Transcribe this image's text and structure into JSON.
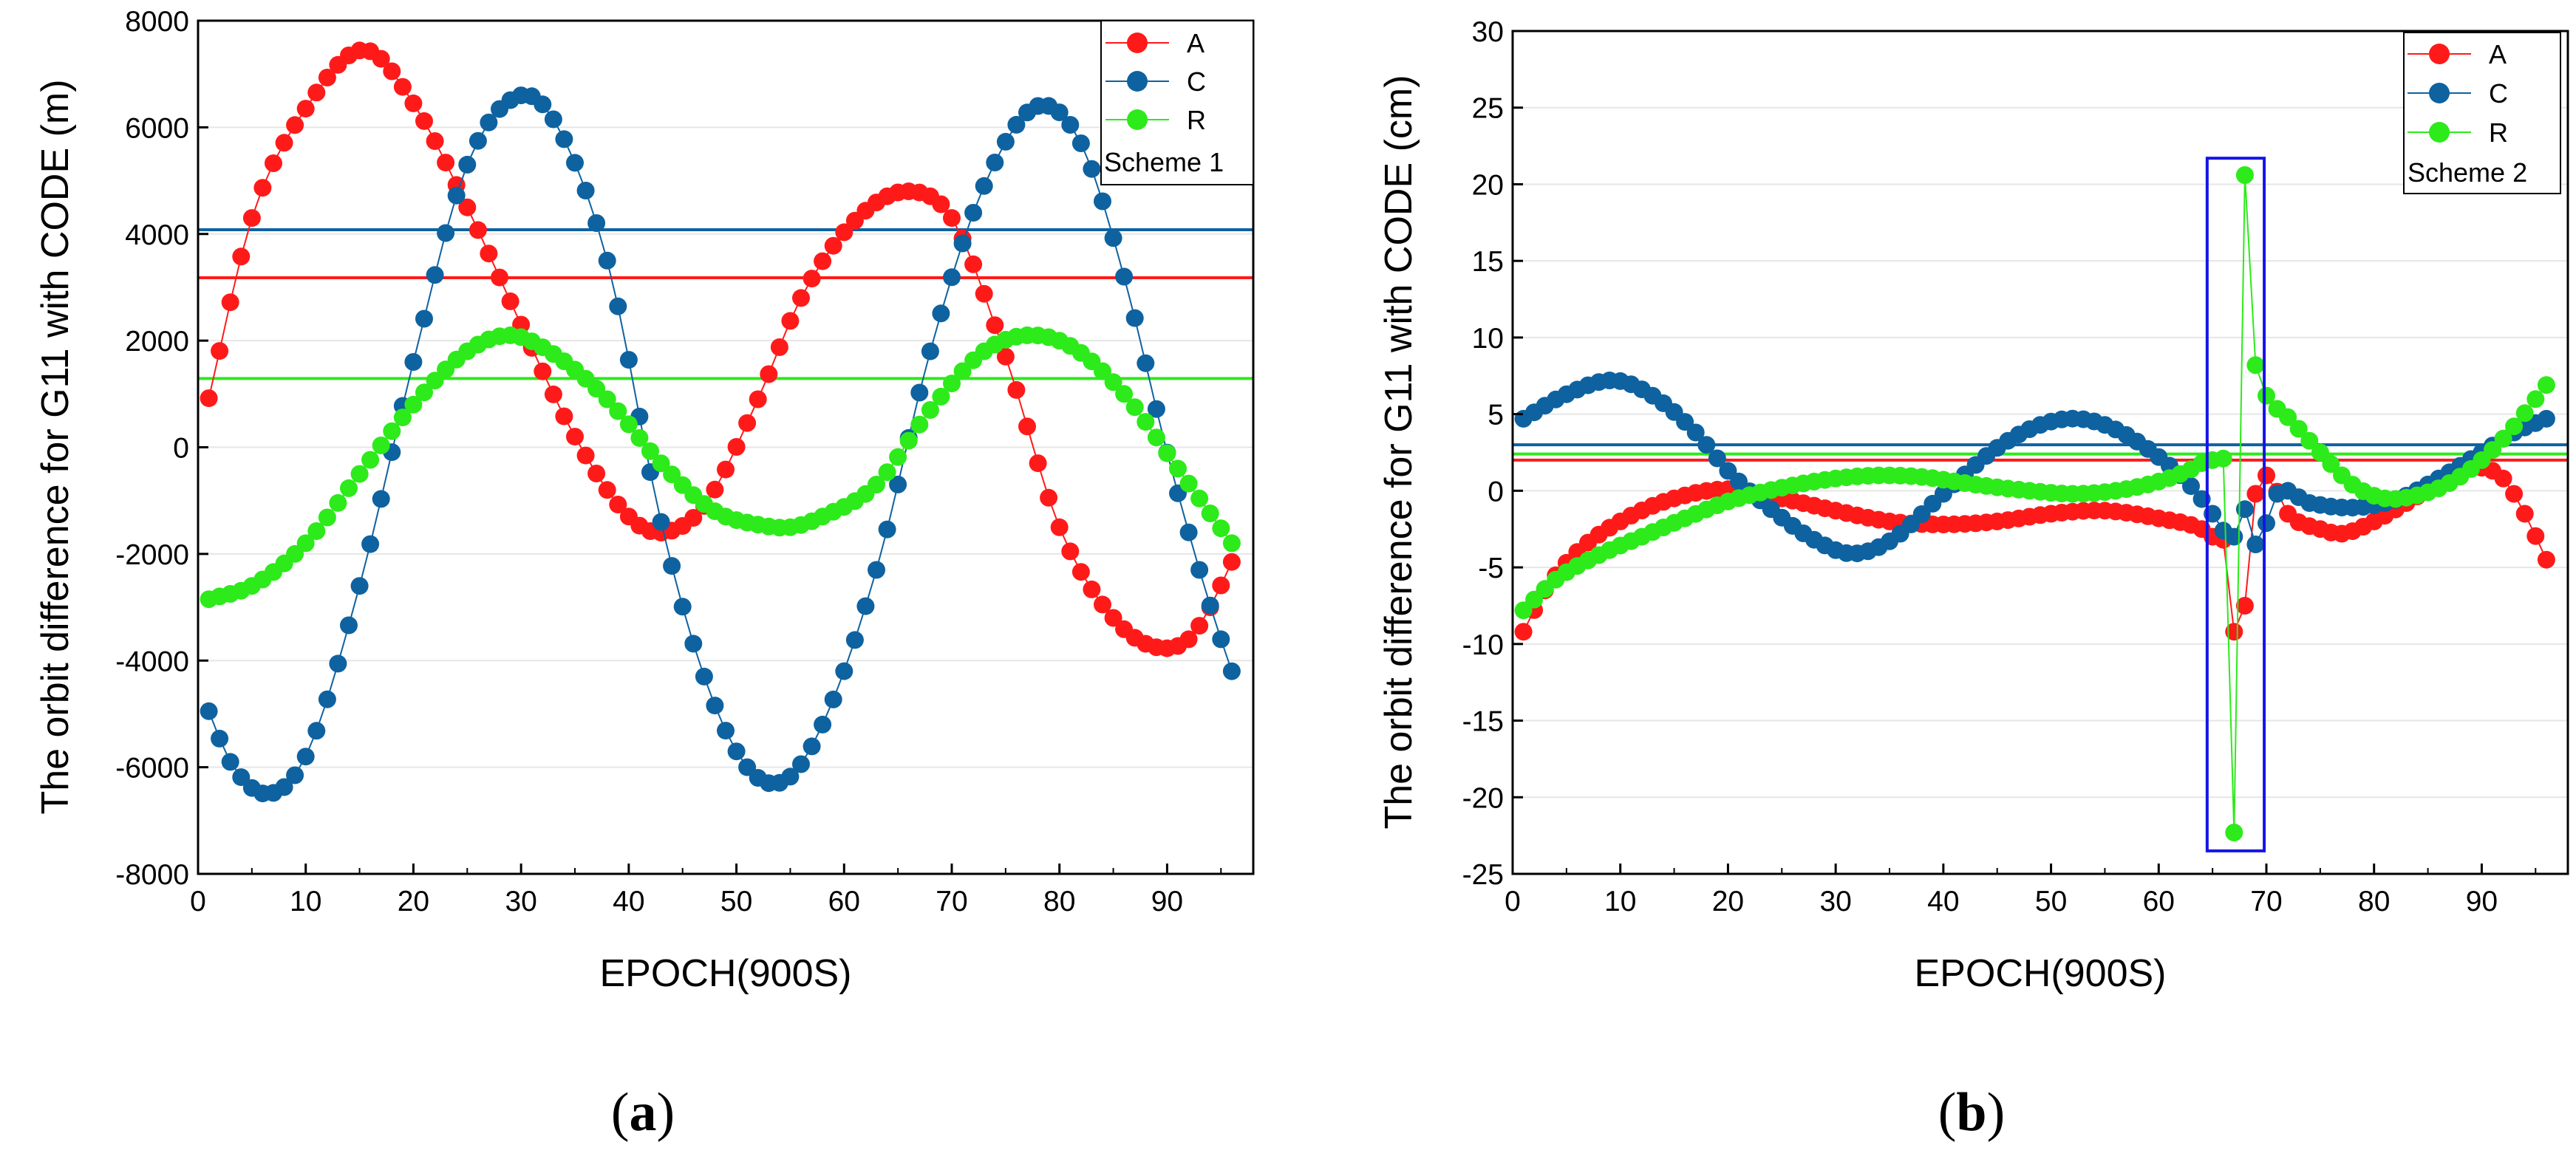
{
  "chart_data": [
    {
      "type": "scatter",
      "panel": "(a)",
      "caption": {
        "open": "(",
        "letter": "a",
        "close": ")"
      },
      "xlabel": "EPOCH(900S)",
      "ylabel": "The orbit difference for G11 with CODE (m)",
      "xlim": [
        0,
        98
      ],
      "ylim": [
        -8000,
        8000
      ],
      "xticks": [
        0,
        10,
        20,
        30,
        40,
        50,
        60,
        70,
        80,
        90
      ],
      "yticks": [
        -8000,
        -6000,
        -4000,
        -2000,
        0,
        2000,
        4000,
        6000,
        8000
      ],
      "grid": true,
      "legend": {
        "placement": "top-right",
        "note": "Scheme 1"
      },
      "x": {
        "start": 1,
        "end": 96,
        "step": 1
      },
      "series": [
        {
          "name": "A",
          "color": "#ff1a1a",
          "mean": 3180,
          "key": [
            [
              1,
              920
            ],
            [
              5,
              4300
            ],
            [
              10,
              6350
            ],
            [
              15.5,
              7450
            ],
            [
              20,
              6450
            ],
            [
              25,
              4500
            ],
            [
              30,
              2300
            ],
            [
              35,
              200
            ],
            [
              40,
              -1300
            ],
            [
              43,
              -1600
            ],
            [
              47,
              -1100
            ],
            [
              52,
              900
            ],
            [
              56,
              2800
            ],
            [
              61,
              4250
            ],
            [
              66,
              4800
            ],
            [
              70,
              4300
            ],
            [
              75,
              1700
            ],
            [
              80,
              -1500
            ],
            [
              85,
              -3200
            ],
            [
              89,
              -3750
            ],
            [
              92,
              -3600
            ],
            [
              94,
              -3000
            ],
            [
              96,
              -2150
            ]
          ]
        },
        {
          "name": "C",
          "color": "#0e62a0",
          "mean": 4080,
          "key": [
            [
              1,
              -4950
            ],
            [
              3,
              -5900
            ],
            [
              6.5,
              -6500
            ],
            [
              10,
              -5800
            ],
            [
              15,
              -2600
            ],
            [
              20,
              1600
            ],
            [
              25,
              5300
            ],
            [
              30,
              6600
            ],
            [
              33,
              6150
            ],
            [
              38,
              3500
            ],
            [
              43,
              -1400
            ],
            [
              47,
              -4300
            ],
            [
              51,
              -6000
            ],
            [
              54.5,
              -6250
            ],
            [
              58,
              -5200
            ],
            [
              63,
              -2300
            ],
            [
              68,
              1800
            ],
            [
              73,
              4900
            ],
            [
              78,
              6400
            ],
            [
              82,
              5700
            ],
            [
              86,
              3200
            ],
            [
              90,
              -100
            ],
            [
              93,
              -2300
            ],
            [
              95,
              -3600
            ],
            [
              96,
              -4200
            ]
          ]
        },
        {
          "name": "R",
          "color": "#2dea1a",
          "mean": 1290,
          "key": [
            [
              1,
              -2850
            ],
            [
              5,
              -2600
            ],
            [
              10,
              -1800
            ],
            [
              15,
              -500
            ],
            [
              20,
              800
            ],
            [
              25,
              1800
            ],
            [
              29,
              2100
            ],
            [
              33,
              1750
            ],
            [
              38,
              900
            ],
            [
              43,
              -300
            ],
            [
              48,
              -1200
            ],
            [
              52,
              -1450
            ],
            [
              55,
              -1500
            ],
            [
              58,
              -1300
            ],
            [
              63,
              -700
            ],
            [
              68,
              700
            ],
            [
              73,
              1800
            ],
            [
              77,
              2100
            ],
            [
              81,
              1900
            ],
            [
              86,
              1000
            ],
            [
              91,
              -400
            ],
            [
              96,
              -1800
            ]
          ]
        }
      ]
    },
    {
      "type": "scatter",
      "panel": "(b)",
      "caption": {
        "open": "(",
        "letter": "b",
        "close": ")"
      },
      "xlabel": "EPOCH(900S)",
      "ylabel": "The orbit difference for G11 with CODE (cm)",
      "xlim": [
        0,
        98
      ],
      "ylim": [
        -25,
        30
      ],
      "xticks": [
        0,
        10,
        20,
        30,
        40,
        50,
        60,
        70,
        80,
        90
      ],
      "yticks": [
        -25,
        -20,
        -15,
        -10,
        -5,
        0,
        5,
        10,
        15,
        20,
        25,
        30
      ],
      "grid": true,
      "legend": {
        "placement": "top-right",
        "note": "Scheme 2"
      },
      "highlight_box": {
        "x_range": [
          64.5,
          69.8
        ],
        "y_range": [
          -23.5,
          21.7
        ],
        "color": "#1414e6"
      },
      "x": {
        "start": 1,
        "end": 96,
        "step": 1
      },
      "series": [
        {
          "name": "A",
          "color": "#ff1a1a",
          "mean": 2.0,
          "key": [
            [
              1,
              -9.2
            ],
            [
              3,
              -6.5
            ],
            [
              6,
              -4.0
            ],
            [
              10,
              -2.0
            ],
            [
              15,
              -0.5
            ],
            [
              20,
              0.1
            ],
            [
              25,
              -0.5
            ],
            [
              30,
              -1.3
            ],
            [
              35,
              -2.0
            ],
            [
              40,
              -2.2
            ],
            [
              45,
              -2.0
            ],
            [
              50,
              -1.5
            ],
            [
              55,
              -1.3
            ],
            [
              60,
              -1.8
            ],
            [
              64,
              -2.5
            ],
            [
              65,
              -3.0
            ],
            [
              66,
              -3.2
            ],
            [
              67,
              -9.2
            ],
            [
              68,
              -7.5
            ],
            [
              69,
              -0.2
            ],
            [
              70,
              1.0
            ],
            [
              72,
              -1.5
            ],
            [
              75,
              -2.5
            ],
            [
              77,
              -2.8
            ],
            [
              80,
              -2.0
            ],
            [
              83,
              -0.8
            ],
            [
              86,
              0.5
            ],
            [
              88,
              1.3
            ],
            [
              90,
              1.5
            ],
            [
              92,
              0.8
            ],
            [
              94,
              -1.5
            ],
            [
              96,
              -4.5
            ]
          ]
        },
        {
          "name": "C",
          "color": "#0e62a0",
          "mean": 3.0,
          "key": [
            [
              1,
              4.7
            ],
            [
              5,
              6.3
            ],
            [
              9.5,
              7.2
            ],
            [
              13,
              6.2
            ],
            [
              17,
              3.8
            ],
            [
              20,
              1.3
            ],
            [
              24,
              -1.2
            ],
            [
              28,
              -3.2
            ],
            [
              31.5,
              -4.1
            ],
            [
              35,
              -3.3
            ],
            [
              40,
              -0.2
            ],
            [
              45,
              2.8
            ],
            [
              49,
              4.3
            ],
            [
              52.5,
              4.7
            ],
            [
              56,
              4.0
            ],
            [
              60,
              2.2
            ],
            [
              63,
              0.3
            ],
            [
              65,
              -1.5
            ],
            [
              66,
              -2.6
            ],
            [
              67,
              -3.0
            ],
            [
              68,
              -1.2
            ],
            [
              69,
              -3.5
            ],
            [
              71,
              -0.2
            ],
            [
              74,
              -0.8
            ],
            [
              78,
              -1.1
            ],
            [
              82,
              -0.6
            ],
            [
              86,
              0.8
            ],
            [
              90,
              2.5
            ],
            [
              93,
              3.8
            ],
            [
              96,
              4.7
            ]
          ]
        },
        {
          "name": "R",
          "color": "#2dea1a",
          "mean": 2.4,
          "key": [
            [
              1,
              -7.8
            ],
            [
              4,
              -5.8
            ],
            [
              8,
              -4.2
            ],
            [
              12,
              -3.0
            ],
            [
              16,
              -1.8
            ],
            [
              20,
              -0.7
            ],
            [
              25,
              0.2
            ],
            [
              30,
              0.8
            ],
            [
              34,
              1.0
            ],
            [
              38,
              0.9
            ],
            [
              43,
              0.4
            ],
            [
              48,
              0.0
            ],
            [
              52,
              -0.2
            ],
            [
              56,
              0.0
            ],
            [
              60,
              0.6
            ],
            [
              63,
              1.4
            ],
            [
              64,
              1.8
            ],
            [
              65,
              2.0
            ],
            [
              66,
              2.1
            ],
            [
              67,
              -22.3
            ],
            [
              68,
              20.6
            ],
            [
              69,
              8.2
            ],
            [
              70,
              6.2
            ],
            [
              72,
              4.8
            ],
            [
              75,
              2.5
            ],
            [
              78,
              0.4
            ],
            [
              81,
              -0.5
            ],
            [
              84,
              -0.3
            ],
            [
              87,
              0.5
            ],
            [
              90,
              2.0
            ],
            [
              93,
              4.2
            ],
            [
              96,
              6.9
            ]
          ]
        }
      ]
    }
  ]
}
